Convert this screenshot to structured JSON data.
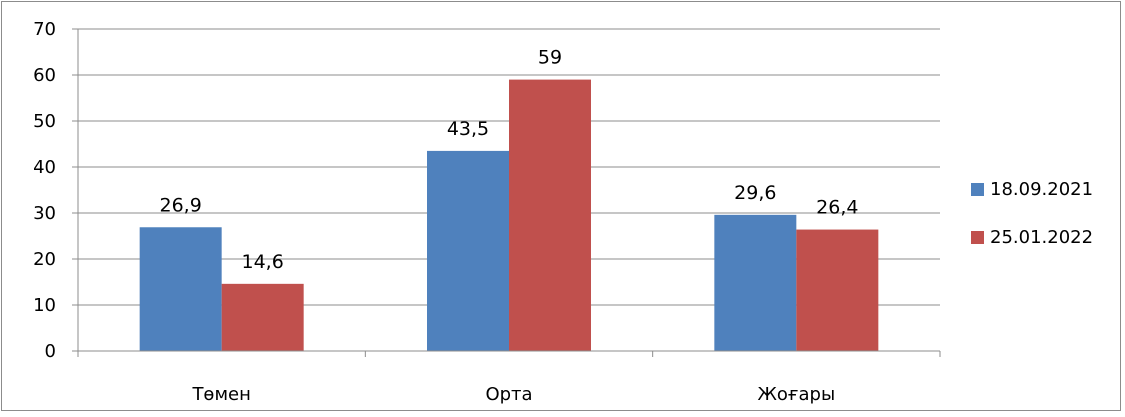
{
  "chart_data": {
    "type": "bar",
    "categories": [
      "Төмен",
      "Орта",
      "Жоғары"
    ],
    "series": [
      {
        "name": "18.09.2021",
        "values": [
          26.9,
          43.5,
          29.6
        ],
        "labels": [
          "26,9",
          "43,5",
          "29,6"
        ],
        "color": "#4f81bd"
      },
      {
        "name": "25.01.2022",
        "values": [
          14.6,
          59,
          26.4
        ],
        "labels": [
          "14,6",
          "59",
          "26,4"
        ],
        "color": "#c0504d"
      }
    ],
    "ylim": [
      0,
      70
    ],
    "yticks": [
      "0",
      "10",
      "20",
      "30",
      "40",
      "50",
      "60",
      "70"
    ],
    "grid": true,
    "legend": "right"
  }
}
